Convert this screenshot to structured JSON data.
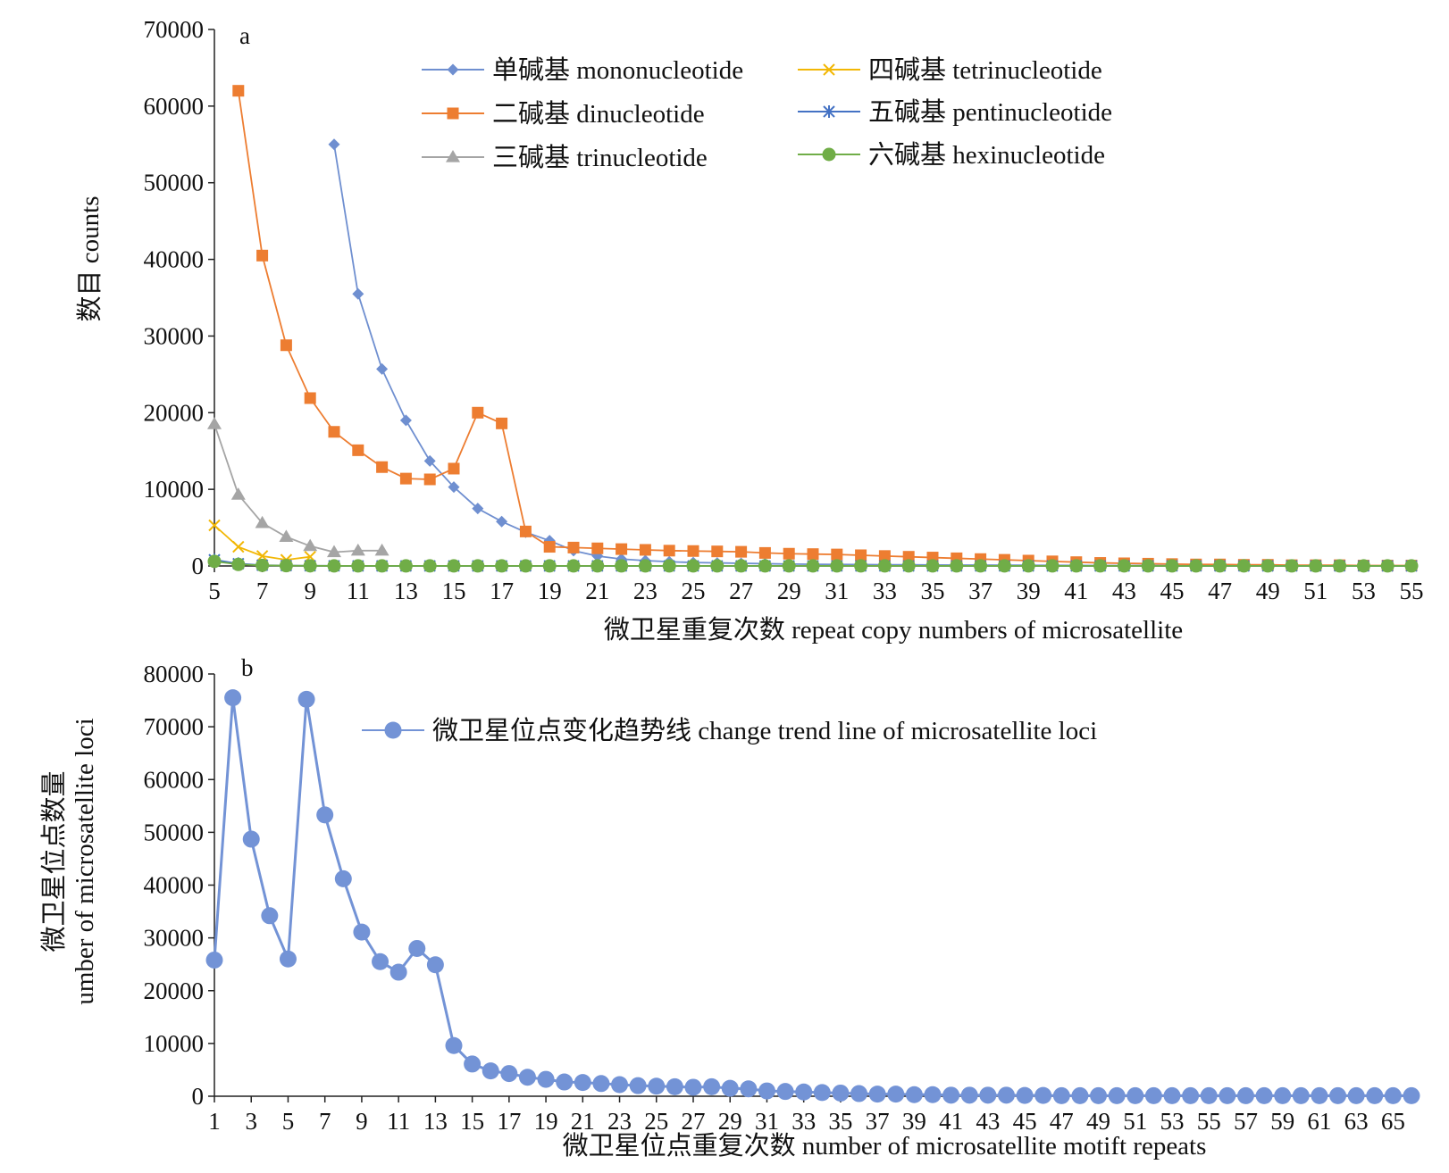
{
  "chart_data": [
    {
      "panel": "a",
      "type": "line",
      "xlabel": "微卫星重复次数 repeat copy numbers of microsatellite",
      "ylabel": "数目 counts",
      "xlim": [
        5,
        55
      ],
      "ylim": [
        0,
        70000
      ],
      "x_ticks": [
        5,
        7,
        9,
        11,
        13,
        15,
        17,
        19,
        21,
        23,
        25,
        27,
        29,
        31,
        33,
        35,
        37,
        39,
        41,
        43,
        45,
        47,
        49,
        51,
        53,
        55
      ],
      "y_ticks": [
        0,
        10000,
        20000,
        30000,
        40000,
        50000,
        60000,
        70000
      ],
      "legend_position": "top-right",
      "series": [
        {
          "name": "单碱基 mononucleotide",
          "color": "#6f8fd0",
          "marker": "diamond",
          "x": [
            10,
            11,
            12,
            13,
            14,
            15,
            16,
            17,
            18,
            19,
            20,
            21,
            22,
            23,
            24,
            25,
            26,
            27,
            28,
            29,
            30,
            31,
            32,
            33,
            34,
            35,
            36,
            37,
            38,
            39,
            40,
            41,
            42,
            43,
            44,
            45,
            46,
            47,
            48,
            49,
            50,
            51,
            52,
            53,
            54,
            55
          ],
          "y": [
            55000,
            35500,
            25700,
            19000,
            13700,
            10300,
            7500,
            5800,
            4400,
            3300,
            2000,
            1300,
            900,
            700,
            550,
            450,
            400,
            350,
            300,
            250,
            220,
            200,
            180,
            160,
            150,
            130,
            120,
            110,
            100,
            90,
            80,
            70,
            60,
            50,
            50,
            40,
            40,
            30,
            30,
            30,
            20,
            20,
            20,
            20,
            10,
            10
          ]
        },
        {
          "name": "二碱基 dinucleotide",
          "color": "#ed7d31",
          "marker": "square",
          "x": [
            6,
            7,
            8,
            9,
            10,
            11,
            12,
            13,
            14,
            15,
            16,
            17,
            18,
            19,
            20,
            21,
            22,
            23,
            24,
            25,
            26,
            27,
            28,
            29,
            30,
            31,
            32,
            33,
            34,
            35,
            36,
            37,
            38,
            39,
            40,
            41,
            42,
            43,
            44,
            45,
            46,
            47,
            48,
            49,
            50,
            51,
            52,
            53,
            54,
            55
          ],
          "y": [
            62000,
            40500,
            28800,
            21900,
            17500,
            15100,
            12900,
            11400,
            11300,
            12700,
            20000,
            18600,
            4500,
            2500,
            2400,
            2300,
            2200,
            2100,
            2000,
            1950,
            1900,
            1850,
            1700,
            1600,
            1550,
            1500,
            1400,
            1300,
            1200,
            1100,
            1000,
            900,
            800,
            700,
            600,
            500,
            400,
            350,
            300,
            250,
            200,
            200,
            150,
            150,
            100,
            100,
            100,
            50,
            50,
            50
          ]
        },
        {
          "name": "三碱基 trinucleotide",
          "color": "#a5a5a5",
          "marker": "triangle",
          "x": [
            5,
            6,
            7,
            8,
            9,
            10,
            11,
            12
          ],
          "y": [
            18500,
            9300,
            5600,
            3800,
            2600,
            1800,
            2000,
            2000
          ]
        },
        {
          "name": "四碱基 tetrinucleotide",
          "color": "#f2b705",
          "marker": "x",
          "x": [
            5,
            6,
            7,
            8,
            9
          ],
          "y": [
            5300,
            2500,
            1300,
            800,
            1200
          ]
        },
        {
          "name": "五碱基 pentinucleotide",
          "color": "#4472c4",
          "marker": "star",
          "x": [
            5,
            6,
            7,
            8,
            9,
            10,
            11,
            12,
            13,
            14,
            15,
            16,
            17,
            18,
            19,
            20,
            21,
            22,
            23,
            24,
            25,
            26,
            27,
            28,
            29,
            30,
            31,
            32,
            33,
            34,
            35,
            36,
            37,
            38,
            39,
            40,
            41,
            42,
            43,
            44,
            45,
            46,
            47,
            48,
            49,
            50,
            51,
            52,
            53,
            54,
            55
          ],
          "y": [
            800,
            300,
            100,
            50,
            30,
            20,
            10,
            10,
            10,
            10,
            10,
            10,
            10,
            10,
            10,
            10,
            10,
            10,
            10,
            10,
            10,
            10,
            10,
            10,
            10,
            10,
            10,
            10,
            10,
            10,
            10,
            10,
            10,
            10,
            10,
            10,
            10,
            10,
            10,
            10,
            10,
            10,
            10,
            10,
            10,
            10,
            10,
            10,
            10,
            10,
            10
          ]
        },
        {
          "name": "六碱基 hexinucleotide",
          "color": "#70ad47",
          "marker": "circle",
          "x": [
            5,
            6,
            7,
            8,
            9,
            10,
            11,
            12,
            13,
            14,
            15,
            16,
            17,
            18,
            19,
            20,
            21,
            22,
            23,
            24,
            25,
            26,
            27,
            28,
            29,
            30,
            31,
            32,
            33,
            34,
            35,
            36,
            37,
            38,
            39,
            40,
            41,
            42,
            43,
            44,
            45,
            46,
            47,
            48,
            49,
            50,
            51,
            52,
            53,
            54,
            55
          ],
          "y": [
            600,
            200,
            80,
            40,
            20,
            10,
            10,
            10,
            10,
            10,
            10,
            10,
            10,
            10,
            10,
            10,
            10,
            10,
            10,
            10,
            10,
            10,
            10,
            10,
            10,
            10,
            10,
            10,
            10,
            10,
            10,
            10,
            10,
            10,
            10,
            10,
            10,
            10,
            10,
            10,
            10,
            10,
            10,
            10,
            10,
            10,
            10,
            10,
            10,
            10,
            10
          ]
        }
      ]
    },
    {
      "panel": "b",
      "type": "line",
      "xlabel": "微卫星位点重复次数 number of microsatellite motift repeats",
      "ylabel": [
        "微卫星位点数量",
        "umber of microsatellite loci"
      ],
      "xlim": [
        1,
        66
      ],
      "ylim": [
        0,
        80000
      ],
      "x_ticks": [
        1,
        3,
        5,
        7,
        9,
        11,
        13,
        15,
        17,
        19,
        21,
        23,
        25,
        27,
        29,
        31,
        33,
        35,
        37,
        39,
        41,
        43,
        45,
        47,
        49,
        51,
        53,
        55,
        57,
        59,
        61,
        63,
        65
      ],
      "y_ticks": [
        0,
        10000,
        20000,
        30000,
        40000,
        50000,
        60000,
        70000,
        80000
      ],
      "legend_position": "top",
      "series": [
        {
          "name": "微卫星位点变化趋势线 change trend line of microsatellite loci",
          "color": "#7393d6",
          "marker": "circle",
          "x": [
            1,
            2,
            3,
            4,
            5,
            6,
            7,
            8,
            9,
            10,
            11,
            12,
            13,
            14,
            15,
            16,
            17,
            18,
            19,
            20,
            21,
            22,
            23,
            24,
            25,
            26,
            27,
            28,
            29,
            30,
            31,
            32,
            33,
            34,
            35,
            36,
            37,
            38,
            39,
            40,
            41,
            42,
            43,
            44,
            45,
            46,
            47,
            48,
            49,
            50,
            51,
            52,
            53,
            54,
            55,
            56,
            57,
            58,
            59,
            60,
            61,
            62,
            63,
            64,
            65,
            66
          ],
          "y": [
            25800,
            75500,
            48700,
            34200,
            26000,
            75200,
            53300,
            41200,
            31100,
            25500,
            23500,
            28000,
            24900,
            9600,
            6100,
            4800,
            4300,
            3600,
            3200,
            2700,
            2600,
            2400,
            2200,
            2000,
            1900,
            1800,
            1700,
            1800,
            1500,
            1400,
            1000,
            900,
            800,
            700,
            600,
            500,
            400,
            400,
            300,
            300,
            200,
            200,
            200,
            200,
            150,
            150,
            100,
            100,
            100,
            100,
            100,
            100,
            100,
            100,
            100,
            100,
            100,
            100,
            100,
            100,
            100,
            100,
            100,
            100,
            100,
            100
          ]
        }
      ]
    }
  ],
  "panel_letters": {
    "a": "a",
    "b": "b"
  }
}
